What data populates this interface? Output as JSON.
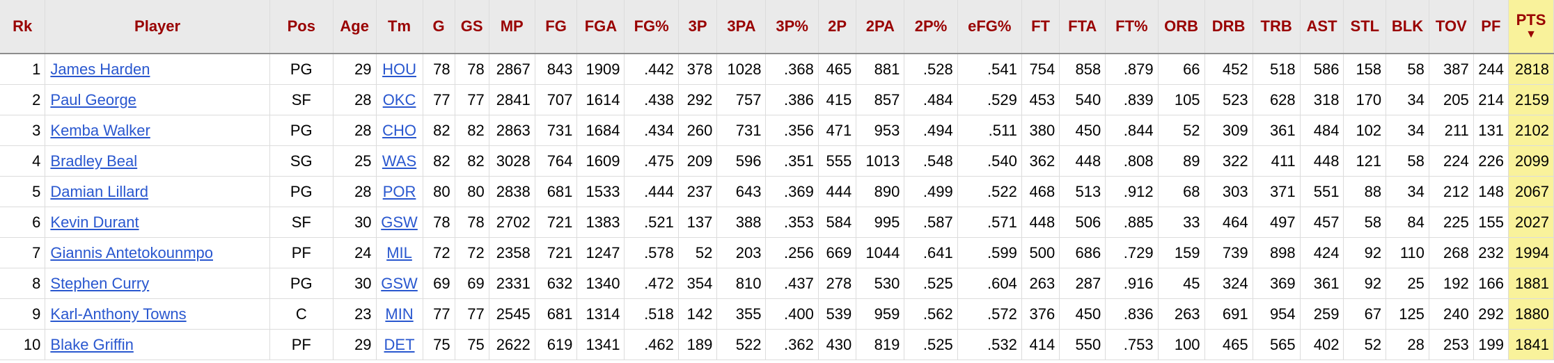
{
  "table": {
    "columns": [
      {
        "key": "rk",
        "label": "Rk"
      },
      {
        "key": "player",
        "label": "Player"
      },
      {
        "key": "pos",
        "label": "Pos"
      },
      {
        "key": "age",
        "label": "Age"
      },
      {
        "key": "tm",
        "label": "Tm"
      },
      {
        "key": "g",
        "label": "G"
      },
      {
        "key": "gs",
        "label": "GS"
      },
      {
        "key": "mp",
        "label": "MP"
      },
      {
        "key": "fg",
        "label": "FG"
      },
      {
        "key": "fga",
        "label": "FGA"
      },
      {
        "key": "fg_pct",
        "label": "FG%"
      },
      {
        "key": "fg3",
        "label": "3P"
      },
      {
        "key": "fg3a",
        "label": "3PA"
      },
      {
        "key": "fg3_pct",
        "label": "3P%"
      },
      {
        "key": "fg2",
        "label": "2P"
      },
      {
        "key": "fg2a",
        "label": "2PA"
      },
      {
        "key": "fg2_pct",
        "label": "2P%"
      },
      {
        "key": "efg_pct",
        "label": "eFG%"
      },
      {
        "key": "ft",
        "label": "FT"
      },
      {
        "key": "fta",
        "label": "FTA"
      },
      {
        "key": "ft_pct",
        "label": "FT%"
      },
      {
        "key": "orb",
        "label": "ORB"
      },
      {
        "key": "drb",
        "label": "DRB"
      },
      {
        "key": "trb",
        "label": "TRB"
      },
      {
        "key": "ast",
        "label": "AST"
      },
      {
        "key": "stl",
        "label": "STL"
      },
      {
        "key": "blk",
        "label": "BLK"
      },
      {
        "key": "tov",
        "label": "TOV"
      },
      {
        "key": "pf",
        "label": "PF"
      },
      {
        "key": "pts",
        "label": "PTS"
      }
    ],
    "sorted_column": "pts",
    "sort_direction_glyph": "▼",
    "rows": [
      [
        "1",
        "James Harden",
        "PG",
        "29",
        "HOU",
        "78",
        "78",
        "2867",
        "843",
        "1909",
        ".442",
        "378",
        "1028",
        ".368",
        "465",
        "881",
        ".528",
        ".541",
        "754",
        "858",
        ".879",
        "66",
        "452",
        "518",
        "586",
        "158",
        "58",
        "387",
        "244",
        "2818"
      ],
      [
        "2",
        "Paul George",
        "SF",
        "28",
        "OKC",
        "77",
        "77",
        "2841",
        "707",
        "1614",
        ".438",
        "292",
        "757",
        ".386",
        "415",
        "857",
        ".484",
        ".529",
        "453",
        "540",
        ".839",
        "105",
        "523",
        "628",
        "318",
        "170",
        "34",
        "205",
        "214",
        "2159"
      ],
      [
        "3",
        "Kemba Walker",
        "PG",
        "28",
        "CHO",
        "82",
        "82",
        "2863",
        "731",
        "1684",
        ".434",
        "260",
        "731",
        ".356",
        "471",
        "953",
        ".494",
        ".511",
        "380",
        "450",
        ".844",
        "52",
        "309",
        "361",
        "484",
        "102",
        "34",
        "211",
        "131",
        "2102"
      ],
      [
        "4",
        "Bradley Beal",
        "SG",
        "25",
        "WAS",
        "82",
        "82",
        "3028",
        "764",
        "1609",
        ".475",
        "209",
        "596",
        ".351",
        "555",
        "1013",
        ".548",
        ".540",
        "362",
        "448",
        ".808",
        "89",
        "322",
        "411",
        "448",
        "121",
        "58",
        "224",
        "226",
        "2099"
      ],
      [
        "5",
        "Damian Lillard",
        "PG",
        "28",
        "POR",
        "80",
        "80",
        "2838",
        "681",
        "1533",
        ".444",
        "237",
        "643",
        ".369",
        "444",
        "890",
        ".499",
        ".522",
        "468",
        "513",
        ".912",
        "68",
        "303",
        "371",
        "551",
        "88",
        "34",
        "212",
        "148",
        "2067"
      ],
      [
        "6",
        "Kevin Durant",
        "SF",
        "30",
        "GSW",
        "78",
        "78",
        "2702",
        "721",
        "1383",
        ".521",
        "137",
        "388",
        ".353",
        "584",
        "995",
        ".587",
        ".571",
        "448",
        "506",
        ".885",
        "33",
        "464",
        "497",
        "457",
        "58",
        "84",
        "225",
        "155",
        "2027"
      ],
      [
        "7",
        "Giannis Antetokounmpo",
        "PF",
        "24",
        "MIL",
        "72",
        "72",
        "2358",
        "721",
        "1247",
        ".578",
        "52",
        "203",
        ".256",
        "669",
        "1044",
        ".641",
        ".599",
        "500",
        "686",
        ".729",
        "159",
        "739",
        "898",
        "424",
        "92",
        "110",
        "268",
        "232",
        "1994"
      ],
      [
        "8",
        "Stephen Curry",
        "PG",
        "30",
        "GSW",
        "69",
        "69",
        "2331",
        "632",
        "1340",
        ".472",
        "354",
        "810",
        ".437",
        "278",
        "530",
        ".525",
        ".604",
        "263",
        "287",
        ".916",
        "45",
        "324",
        "369",
        "361",
        "92",
        "25",
        "192",
        "166",
        "1881"
      ],
      [
        "9",
        "Karl-Anthony Towns",
        "C",
        "23",
        "MIN",
        "77",
        "77",
        "2545",
        "681",
        "1314",
        ".518",
        "142",
        "355",
        ".400",
        "539",
        "959",
        ".562",
        ".572",
        "376",
        "450",
        ".836",
        "263",
        "691",
        "954",
        "259",
        "67",
        "125",
        "240",
        "292",
        "1880"
      ],
      [
        "10",
        "Blake Griffin",
        "PF",
        "29",
        "DET",
        "75",
        "75",
        "2622",
        "619",
        "1341",
        ".462",
        "189",
        "522",
        ".362",
        "430",
        "819",
        ".525",
        ".532",
        "414",
        "550",
        ".753",
        "100",
        "465",
        "565",
        "402",
        "52",
        "28",
        "253",
        "199",
        "1841"
      ]
    ]
  },
  "colors": {
    "header_text": "#990000",
    "header_bg": "#eaeaea",
    "sorted_bg": "#f9f29b",
    "link": "#2957cf",
    "grid": "#dcdcdc"
  }
}
